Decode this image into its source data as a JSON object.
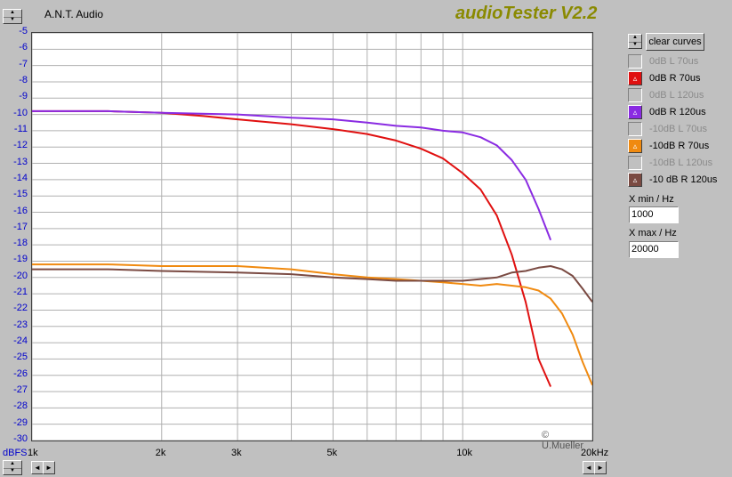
{
  "header": {
    "brand": "A.N.T. Audio",
    "app_title": "audioTester V2.2"
  },
  "controls": {
    "clear_label": "clear curves",
    "xmin_label": "X min / Hz",
    "xmin_value": "1000",
    "xmax_label": "X max / Hz",
    "xmax_value": "20000"
  },
  "legend": [
    {
      "label": "0dB L 70us",
      "active": false,
      "color": "#c0c0c0"
    },
    {
      "label": "0dB R 70us",
      "active": true,
      "color": "#e01010"
    },
    {
      "label": "0dB L 120us",
      "active": false,
      "color": "#c0c0c0"
    },
    {
      "label": "0dB R 120us",
      "active": true,
      "color": "#8a2be2"
    },
    {
      "label": "-10dB L 70us",
      "active": false,
      "color": "#c0c0c0"
    },
    {
      "label": "-10dB R 70us",
      "active": true,
      "color": "#f08a10"
    },
    {
      "label": "-10dB L 120us",
      "active": false,
      "color": "#c0c0c0"
    },
    {
      "label": "-10 dB R 120us",
      "active": true,
      "color": "#7a4a42"
    }
  ],
  "copyright": "© U.Mueller",
  "chart_data": {
    "type": "line",
    "xlabel": "",
    "ylabel": "dBFS",
    "xscale": "log",
    "xlim": [
      1000,
      20000
    ],
    "ylim": [
      -30,
      -5
    ],
    "y_ticks": [
      "-5",
      "-6",
      "-7",
      "-8",
      "-9",
      "-10",
      "-11",
      "-12",
      "-13",
      "-14",
      "-15",
      "-16",
      "-17",
      "-18",
      "-19",
      "-20",
      "-21",
      "-22",
      "-23",
      "-24",
      "-25",
      "-26",
      "-27",
      "-28",
      "-29",
      "-30"
    ],
    "x_ticks": [
      {
        "value": 1000,
        "label": "1k"
      },
      {
        "value": 2000,
        "label": "2k"
      },
      {
        "value": 3000,
        "label": "3k"
      },
      {
        "value": 5000,
        "label": "5k"
      },
      {
        "value": 10000,
        "label": "10k"
      },
      {
        "value": 20000,
        "label": "20kHz"
      }
    ],
    "grid": true,
    "series": [
      {
        "name": "0dB R 70us",
        "color": "#e01010",
        "x": [
          1000,
          1500,
          2000,
          2500,
          3000,
          4000,
          5000,
          6000,
          7000,
          8000,
          9000,
          10000,
          11000,
          12000,
          13000,
          14000,
          15000,
          16000
        ],
        "y": [
          -9.8,
          -9.8,
          -9.9,
          -10.1,
          -10.3,
          -10.6,
          -10.9,
          -11.2,
          -11.6,
          -12.1,
          -12.7,
          -13.6,
          -14.6,
          -16.2,
          -18.6,
          -21.5,
          -25.0,
          -26.7
        ]
      },
      {
        "name": "0dB R 120us",
        "color": "#8a2be2",
        "x": [
          1000,
          1500,
          2000,
          3000,
          4000,
          5000,
          6000,
          7000,
          8000,
          9000,
          10000,
          11000,
          12000,
          13000,
          14000,
          15000,
          16000
        ],
        "y": [
          -9.8,
          -9.8,
          -9.9,
          -10.0,
          -10.2,
          -10.3,
          -10.5,
          -10.7,
          -10.8,
          -11.0,
          -11.1,
          -11.4,
          -11.9,
          -12.8,
          -14.0,
          -15.8,
          -17.7
        ]
      },
      {
        "name": "-10dB R 70us",
        "color": "#f08a10",
        "x": [
          1000,
          1500,
          2000,
          3000,
          4000,
          5000,
          6000,
          7000,
          8000,
          9000,
          10000,
          11000,
          12000,
          13000,
          14000,
          15000,
          16000,
          17000,
          18000,
          19000,
          20000
        ],
        "y": [
          -19.2,
          -19.2,
          -19.3,
          -19.3,
          -19.5,
          -19.8,
          -20.0,
          -20.1,
          -20.2,
          -20.3,
          -20.4,
          -20.5,
          -20.4,
          -20.5,
          -20.6,
          -20.8,
          -21.3,
          -22.2,
          -23.5,
          -25.2,
          -26.6
        ]
      },
      {
        "name": "-10 dB R 120us",
        "color": "#7a4a42",
        "x": [
          1000,
          1500,
          2000,
          3000,
          4000,
          5000,
          6000,
          7000,
          8000,
          9000,
          10000,
          11000,
          12000,
          13000,
          14000,
          15000,
          16000,
          17000,
          18000,
          19000,
          20000
        ],
        "y": [
          -19.5,
          -19.5,
          -19.6,
          -19.7,
          -19.8,
          -20.0,
          -20.1,
          -20.2,
          -20.2,
          -20.2,
          -20.2,
          -20.1,
          -20.0,
          -19.7,
          -19.6,
          -19.4,
          -19.3,
          -19.5,
          -19.9,
          -20.7,
          -21.5
        ]
      }
    ]
  }
}
